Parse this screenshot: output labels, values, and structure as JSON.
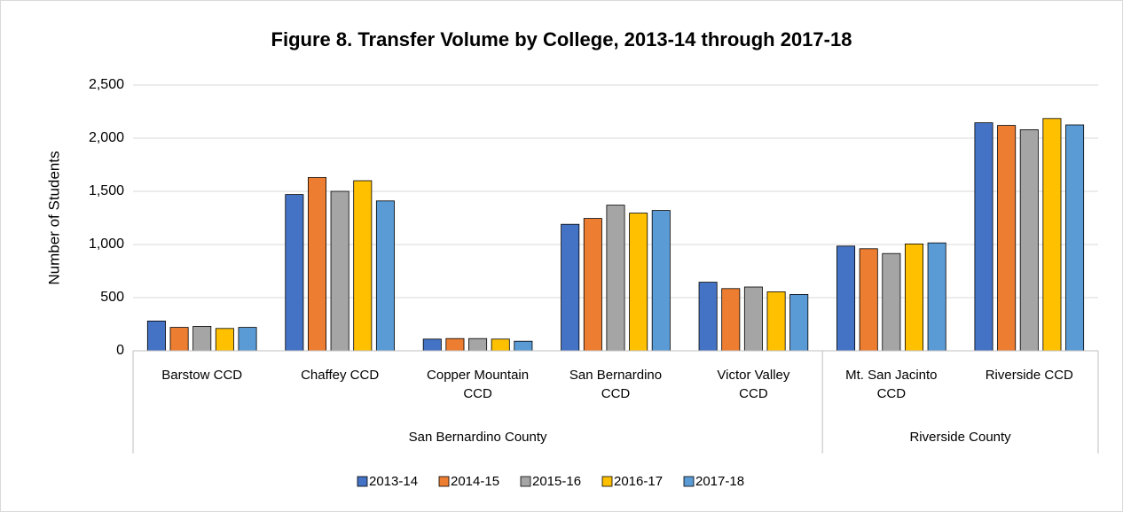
{
  "chart_data": {
    "type": "bar",
    "title": "Figure 8. Transfer Volume by College, 2013-14 through 2017-18",
    "y_label": "Number of Students",
    "groups": [
      {
        "name": "San Bernardino County",
        "categories": [
          "Barstow CCD",
          "Chaffey CCD",
          "Copper Mountain CCD",
          "San Bernardino CCD",
          "Victor Valley CCD"
        ]
      },
      {
        "name": "Riverside County",
        "categories": [
          "Mt. San Jacinto CCD",
          "Riverside CCD"
        ]
      }
    ],
    "series": [
      {
        "name": "2013-14",
        "color": "#4472c4",
        "values": [
          280,
          1470,
          110,
          1190,
          645,
          985,
          2145
        ]
      },
      {
        "name": "2014-15",
        "color": "#ed7d31",
        "values": [
          220,
          1630,
          115,
          1245,
          585,
          960,
          2120
        ]
      },
      {
        "name": "2015-16",
        "color": "#a5a5a5",
        "values": [
          230,
          1500,
          115,
          1370,
          600,
          915,
          2080
        ]
      },
      {
        "name": "2016-17",
        "color": "#ffc000",
        "values": [
          210,
          1600,
          110,
          1295,
          555,
          1005,
          2185
        ]
      },
      {
        "name": "2017-18",
        "color": "#5b9bd5",
        "values": [
          220,
          1410,
          90,
          1320,
          530,
          1015,
          2125
        ]
      }
    ],
    "ylim": [
      0,
      2500
    ],
    "yticks": [
      0,
      500,
      {
        "value": 1000,
        "label": "1,000"
      },
      {
        "value": 1500,
        "label": "1,500"
      },
      {
        "value": 2000,
        "label": "2,000"
      },
      {
        "value": 2500,
        "label": "2,500"
      }
    ],
    "grid": true,
    "legend": "bottom"
  }
}
